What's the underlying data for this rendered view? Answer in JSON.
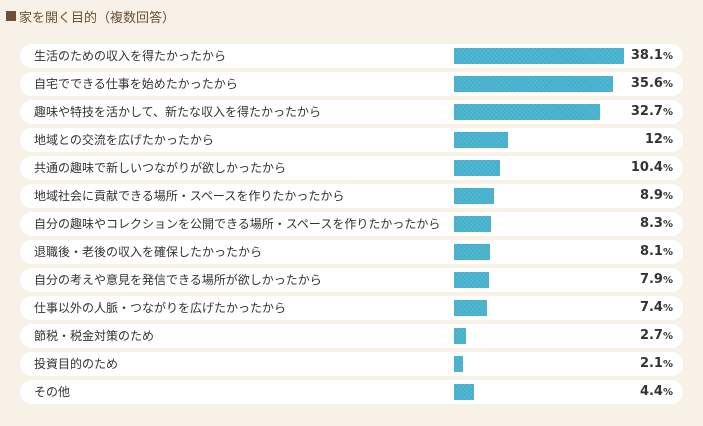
{
  "title": "家を開く目的（複数回答）",
  "colors": {
    "background": "#f8f1e8",
    "title": "#6b5138",
    "bar": "#45b0cc",
    "row": "#ffffff"
  },
  "chart_data": {
    "type": "bar",
    "orientation": "horizontal",
    "title": "家を開く目的（複数回答）",
    "unit": "%",
    "xlim": [
      0,
      38.1
    ],
    "categories": [
      "生活のための収入を得たかったから",
      "自宅でできる仕事を始めたかったから",
      "趣味や特技を活かして、新たな収入を得たかったから",
      "地域との交流を広げたかったから",
      "共通の趣味で新しいつながりが欲しかったから",
      "地域社会に貢献できる場所・スペースを作りたかったから",
      "自分の趣味やコレクションを公開できる場所・スペースを作りたかったから",
      "退職後・老後の収入を確保したかったから",
      "自分の考えや意見を発信できる場所が欲しかったから",
      "仕事以外の人脈・つながりを広げたかったから",
      "節税・税金対策のため",
      "投資目的のため",
      "その他"
    ],
    "values": [
      38.1,
      35.6,
      32.7,
      12,
      10.4,
      8.9,
      8.3,
      8.1,
      7.9,
      7.4,
      2.7,
      2.1,
      4.4
    ]
  }
}
